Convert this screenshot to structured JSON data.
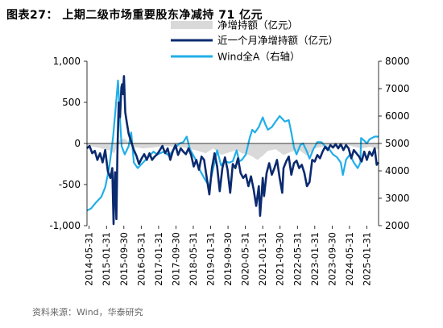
{
  "title": "图表27： 上期二级市场重要股东净减持 71 亿元",
  "source": "资料来源：Wind，华泰研究",
  "chart_data": {
    "type": "line",
    "legend": [
      {
        "name": "净增持额（亿元）",
        "color": "#d9d9d9",
        "kind": "area"
      },
      {
        "name": "近一个月净增持额（亿元）",
        "color": "#0b2a6f",
        "kind": "line"
      },
      {
        "name": "Wind全A（右轴）",
        "color": "#21aee8",
        "kind": "line"
      }
    ],
    "y_left": {
      "ticks": [
        1000,
        500,
        0,
        -500,
        -1000
      ],
      "tick_labels": [
        "1,000",
        "500",
        "0",
        "-500",
        "-1,000"
      ],
      "min": -1000,
      "max": 1000
    },
    "y_right": {
      "ticks": [
        8000,
        7000,
        6000,
        5000,
        4000,
        3000,
        2000
      ],
      "tick_labels": [
        "8000",
        "7000",
        "6000",
        "5000",
        "4000",
        "3000",
        "2000"
      ],
      "min": 2000,
      "max": 8000
    },
    "x_tick_labels": [
      "2014-05-31",
      "2015-01-31",
      "2015-09-30",
      "2016-05-31",
      "2017-01-31",
      "2017-09-30",
      "2018-05-31",
      "2019-01-31",
      "2019-09-30",
      "2020-05-31",
      "2021-01-31",
      "2021-09-30",
      "2022-05-31",
      "2023-01-31",
      "2023-09-30",
      "2024-05-31",
      "2025-01-31"
    ],
    "x_tick_t": [
      2014.333,
      2015.0,
      2015.667,
      2016.333,
      2017.0,
      2017.667,
      2018.333,
      2019.0,
      2019.667,
      2020.333,
      2021.0,
      2021.667,
      2022.333,
      2023.0,
      2023.667,
      2024.333,
      2025.0
    ],
    "x_range": [
      2014.25,
      2025.45
    ],
    "series": [
      {
        "name": "Wind全A（右轴）",
        "axis": "right",
        "points": [
          [
            2014.25,
            2550
          ],
          [
            2014.4,
            2620
          ],
          [
            2014.6,
            2850
          ],
          [
            2014.8,
            3050
          ],
          [
            2014.95,
            3400
          ],
          [
            2015.1,
            4100
          ],
          [
            2015.25,
            5200
          ],
          [
            2015.35,
            6300
          ],
          [
            2015.44,
            7300
          ],
          [
            2015.5,
            6200
          ],
          [
            2015.58,
            4900
          ],
          [
            2015.7,
            4600
          ],
          [
            2015.85,
            4900
          ],
          [
            2015.95,
            5400
          ],
          [
            2016.05,
            4300
          ],
          [
            2016.2,
            4100
          ],
          [
            2016.4,
            4300
          ],
          [
            2016.6,
            4500
          ],
          [
            2016.8,
            4700
          ],
          [
            2016.95,
            4600
          ],
          [
            2017.2,
            4700
          ],
          [
            2017.4,
            4550
          ],
          [
            2017.6,
            4800
          ],
          [
            2017.8,
            5000
          ],
          [
            2017.95,
            5050
          ],
          [
            2018.08,
            5250
          ],
          [
            2018.2,
            4800
          ],
          [
            2018.4,
            4450
          ],
          [
            2018.6,
            4000
          ],
          [
            2018.8,
            3650
          ],
          [
            2018.95,
            3450
          ],
          [
            2019.1,
            4100
          ],
          [
            2019.25,
            4750
          ],
          [
            2019.4,
            4200
          ],
          [
            2019.55,
            4350
          ],
          [
            2019.7,
            4300
          ],
          [
            2019.85,
            4350
          ],
          [
            2020.0,
            4750
          ],
          [
            2020.1,
            4350
          ],
          [
            2020.2,
            4400
          ],
          [
            2020.35,
            4600
          ],
          [
            2020.5,
            5200
          ],
          [
            2020.6,
            5500
          ],
          [
            2020.7,
            5400
          ],
          [
            2020.85,
            5600
          ],
          [
            2021.0,
            5950
          ],
          [
            2021.1,
            5700
          ],
          [
            2021.2,
            5500
          ],
          [
            2021.35,
            5600
          ],
          [
            2021.5,
            5800
          ],
          [
            2021.65,
            6000
          ],
          [
            2021.75,
            5900
          ],
          [
            2021.85,
            5800
          ],
          [
            2022.0,
            5850
          ],
          [
            2022.1,
            5400
          ],
          [
            2022.2,
            4850
          ],
          [
            2022.3,
            4600
          ],
          [
            2022.45,
            4950
          ],
          [
            2022.55,
            5000
          ],
          [
            2022.7,
            4700
          ],
          [
            2022.8,
            4450
          ],
          [
            2022.95,
            4800
          ],
          [
            2023.1,
            5050
          ],
          [
            2023.25,
            5050
          ],
          [
            2023.4,
            4900
          ],
          [
            2023.55,
            4800
          ],
          [
            2023.7,
            4600
          ],
          [
            2023.85,
            4500
          ],
          [
            2024.0,
            4300
          ],
          [
            2024.08,
            3850
          ],
          [
            2024.2,
            4400
          ],
          [
            2024.35,
            4600
          ],
          [
            2024.5,
            4300
          ],
          [
            2024.65,
            4100
          ],
          [
            2024.75,
            4300
          ],
          [
            2024.78,
            5200
          ],
          [
            2024.9,
            5100
          ],
          [
            2025.0,
            5000
          ],
          [
            2025.1,
            5150
          ],
          [
            2025.2,
            5200
          ],
          [
            2025.3,
            5250
          ],
          [
            2025.45,
            5250
          ]
        ]
      },
      {
        "name": "近一个月净增持额（亿元）",
        "axis": "left",
        "points": [
          [
            2014.25,
            -60
          ],
          [
            2014.35,
            -30
          ],
          [
            2014.45,
            -120
          ],
          [
            2014.55,
            -90
          ],
          [
            2014.65,
            -200
          ],
          [
            2014.75,
            -120
          ],
          [
            2014.85,
            -230
          ],
          [
            2014.95,
            -80
          ],
          [
            2015.05,
            -340
          ],
          [
            2015.15,
            -420
          ],
          [
            2015.22,
            -300
          ],
          [
            2015.27,
            -980
          ],
          [
            2015.3,
            -550
          ],
          [
            2015.33,
            -350
          ],
          [
            2015.38,
            -920
          ],
          [
            2015.42,
            -100
          ],
          [
            2015.47,
            500
          ],
          [
            2015.52,
            320
          ],
          [
            2015.57,
            680
          ],
          [
            2015.6,
            720
          ],
          [
            2015.63,
            600
          ],
          [
            2015.67,
            820
          ],
          [
            2015.72,
            380
          ],
          [
            2015.78,
            250
          ],
          [
            2015.85,
            120
          ],
          [
            2015.95,
            20
          ],
          [
            2016.05,
            -80
          ],
          [
            2016.15,
            -150
          ],
          [
            2016.25,
            -250
          ],
          [
            2016.35,
            -180
          ],
          [
            2016.45,
            -130
          ],
          [
            2016.55,
            -200
          ],
          [
            2016.65,
            -120
          ],
          [
            2016.75,
            -200
          ],
          [
            2016.85,
            -160
          ],
          [
            2016.95,
            -130
          ],
          [
            2017.05,
            -80
          ],
          [
            2017.15,
            -30
          ],
          [
            2017.25,
            -120
          ],
          [
            2017.35,
            -60
          ],
          [
            2017.45,
            -200
          ],
          [
            2017.55,
            -90
          ],
          [
            2017.65,
            -20
          ],
          [
            2017.75,
            -140
          ],
          [
            2017.85,
            -60
          ],
          [
            2017.95,
            -100
          ],
          [
            2018.05,
            -130
          ],
          [
            2018.15,
            -60
          ],
          [
            2018.25,
            -140
          ],
          [
            2018.35,
            -280
          ],
          [
            2018.45,
            -200
          ],
          [
            2018.55,
            -320
          ],
          [
            2018.65,
            -160
          ],
          [
            2018.75,
            -200
          ],
          [
            2018.85,
            -420
          ],
          [
            2018.95,
            -620
          ],
          [
            2019.05,
            -300
          ],
          [
            2019.15,
            -120
          ],
          [
            2019.25,
            -280
          ],
          [
            2019.35,
            -580
          ],
          [
            2019.45,
            -300
          ],
          [
            2019.55,
            -170
          ],
          [
            2019.65,
            -320
          ],
          [
            2019.75,
            -600
          ],
          [
            2019.85,
            -250
          ],
          [
            2019.95,
            -300
          ],
          [
            2020.05,
            -180
          ],
          [
            2020.15,
            -360
          ],
          [
            2020.25,
            -420
          ],
          [
            2020.35,
            -380
          ],
          [
            2020.45,
            -520
          ],
          [
            2020.55,
            -400
          ],
          [
            2020.65,
            -560
          ],
          [
            2020.75,
            -760
          ],
          [
            2020.85,
            -520
          ],
          [
            2020.9,
            -880
          ],
          [
            2020.95,
            -650
          ],
          [
            2021.0,
            -420
          ],
          [
            2021.05,
            -640
          ],
          [
            2021.1,
            -500
          ],
          [
            2021.15,
            -360
          ],
          [
            2021.25,
            -240
          ],
          [
            2021.35,
            -380
          ],
          [
            2021.45,
            -300
          ],
          [
            2021.55,
            -200
          ],
          [
            2021.65,
            -420
          ],
          [
            2021.75,
            -600
          ],
          [
            2021.8,
            -300
          ],
          [
            2021.9,
            -220
          ],
          [
            2022.0,
            -160
          ],
          [
            2022.1,
            -380
          ],
          [
            2022.2,
            -240
          ],
          [
            2022.3,
            -210
          ],
          [
            2022.4,
            -300
          ],
          [
            2022.5,
            -260
          ],
          [
            2022.6,
            -360
          ],
          [
            2022.7,
            -520
          ],
          [
            2022.8,
            -470
          ],
          [
            2022.9,
            -200
          ],
          [
            2023.0,
            -220
          ],
          [
            2023.1,
            -140
          ],
          [
            2023.2,
            -180
          ],
          [
            2023.3,
            -100
          ],
          [
            2023.4,
            -40
          ],
          [
            2023.5,
            -80
          ],
          [
            2023.6,
            -20
          ],
          [
            2023.7,
            -50
          ],
          [
            2023.8,
            -10
          ],
          [
            2023.9,
            -60
          ],
          [
            2024.0,
            -10
          ],
          [
            2024.1,
            -80
          ],
          [
            2024.2,
            -20
          ],
          [
            2024.3,
            -60
          ],
          [
            2024.4,
            -180
          ],
          [
            2024.5,
            -80
          ],
          [
            2024.6,
            -120
          ],
          [
            2024.7,
            -160
          ],
          [
            2024.8,
            -220
          ],
          [
            2024.9,
            -100
          ],
          [
            2025.0,
            -200
          ],
          [
            2025.1,
            -100
          ],
          [
            2025.2,
            -150
          ],
          [
            2025.3,
            -60
          ],
          [
            2025.38,
            -260
          ],
          [
            2025.45,
            -230
          ]
        ]
      },
      {
        "name": "净增持额（亿元）",
        "axis": "left",
        "points": [
          [
            2014.25,
            -20
          ],
          [
            2014.5,
            -40
          ],
          [
            2014.8,
            -60
          ],
          [
            2015.1,
            -80
          ],
          [
            2015.3,
            -120
          ],
          [
            2015.5,
            40
          ],
          [
            2015.7,
            60
          ],
          [
            2016.0,
            -40
          ],
          [
            2016.4,
            -60
          ],
          [
            2016.8,
            -50
          ],
          [
            2017.2,
            -30
          ],
          [
            2017.6,
            -40
          ],
          [
            2018.0,
            -50
          ],
          [
            2018.4,
            -80
          ],
          [
            2018.8,
            -120
          ],
          [
            2019.1,
            -60
          ],
          [
            2019.4,
            -140
          ],
          [
            2019.8,
            -100
          ],
          [
            2020.0,
            -80
          ],
          [
            2020.2,
            -120
          ],
          [
            2020.4,
            -130
          ],
          [
            2020.6,
            -160
          ],
          [
            2020.8,
            -200
          ],
          [
            2021.0,
            -150
          ],
          [
            2021.2,
            -90
          ],
          [
            2021.5,
            -70
          ],
          [
            2021.8,
            -140
          ],
          [
            2022.1,
            -100
          ],
          [
            2022.4,
            -80
          ],
          [
            2022.7,
            -150
          ],
          [
            2023.0,
            -60
          ],
          [
            2023.3,
            -40
          ],
          [
            2023.6,
            -20
          ],
          [
            2023.9,
            -25
          ],
          [
            2024.2,
            -15
          ],
          [
            2024.5,
            -40
          ],
          [
            2024.8,
            -60
          ],
          [
            2025.1,
            -40
          ],
          [
            2025.45,
            -70
          ]
        ]
      }
    ]
  }
}
